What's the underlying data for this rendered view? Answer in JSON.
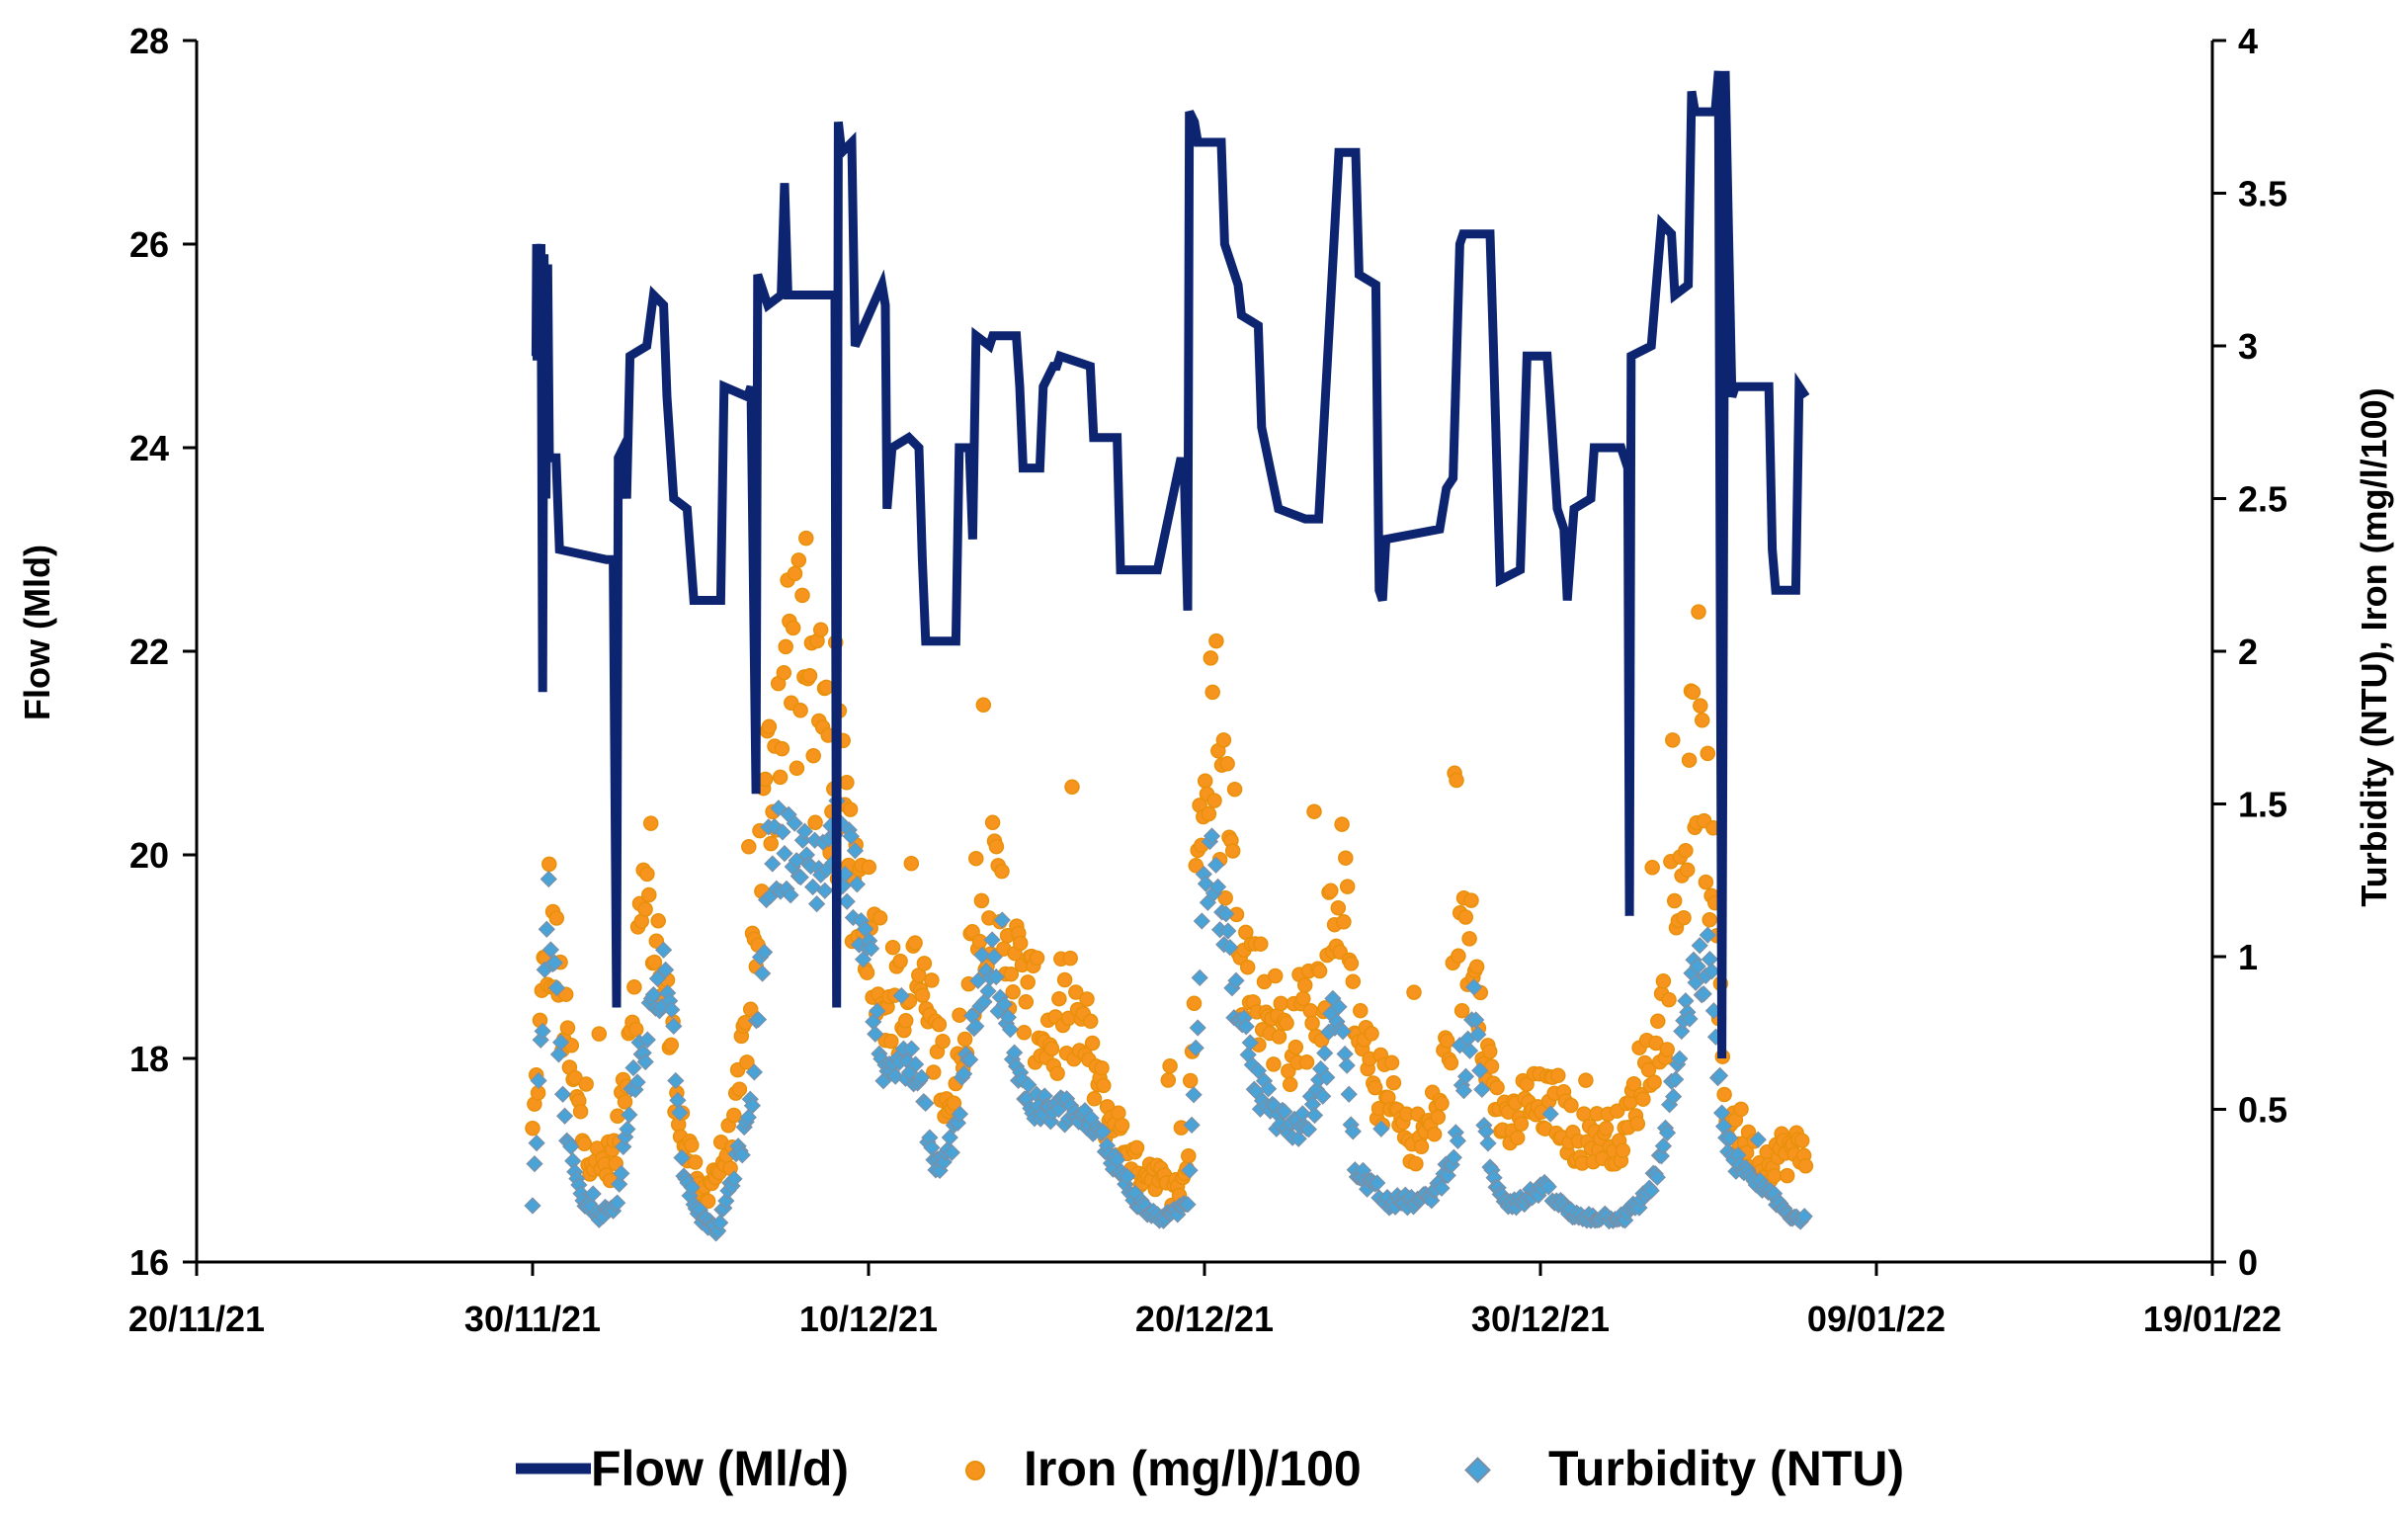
{
  "chart_data": {
    "type": "line",
    "title": "",
    "x_axis": {
      "type": "date",
      "range": [
        "20/11/21",
        "19/01/22"
      ],
      "tick_labels": [
        "20/11/21",
        "30/11/21",
        "10/12/21",
        "20/12/21",
        "30/12/21",
        "09/01/22",
        "19/01/22"
      ]
    },
    "y_left": {
      "label": "Flow (Mld)",
      "range": [
        16,
        28
      ],
      "tick_labels": [
        "16",
        "18",
        "20",
        "22",
        "24",
        "26",
        "28"
      ]
    },
    "y_right": {
      "label": "Turbidity (NTU), Iron (mg/l/100)",
      "range": [
        0,
        4
      ],
      "tick_labels": [
        "0",
        "0.5",
        "1",
        "1.5",
        "2",
        "2.5",
        "3",
        "3.5",
        "4"
      ]
    },
    "legend": {
      "position": "bottom"
    },
    "series": [
      {
        "name": "Flow (Ml/d)",
        "axis": "left",
        "style": "line",
        "color": "#0d2470",
        "points": [
          [
            0.0,
            24.9
          ],
          [
            0.1,
            24.9
          ],
          [
            0.12,
            26.0
          ],
          [
            0.2,
            25.5
          ],
          [
            0.25,
            26.0
          ],
          [
            0.3,
            21.6
          ],
          [
            0.34,
            25.9
          ],
          [
            0.4,
            23.5
          ],
          [
            0.45,
            25.8
          ],
          [
            0.5,
            23.9
          ],
          [
            0.7,
            23.9
          ],
          [
            0.8,
            23.0
          ],
          [
            2.2,
            22.9
          ],
          [
            2.4,
            22.9
          ],
          [
            2.5,
            18.5
          ],
          [
            2.55,
            23.9
          ],
          [
            2.7,
            24.0
          ],
          [
            2.8,
            23.5
          ],
          [
            2.9,
            24.9
          ],
          [
            3.4,
            25.0
          ],
          [
            3.6,
            25.5
          ],
          [
            3.9,
            25.4
          ],
          [
            4.0,
            24.5
          ],
          [
            4.2,
            23.5
          ],
          [
            4.6,
            23.4
          ],
          [
            4.8,
            22.5
          ],
          [
            5.6,
            22.5
          ],
          [
            5.7,
            24.6
          ],
          [
            6.4,
            24.5
          ],
          [
            6.5,
            24.6
          ],
          [
            6.65,
            20.6
          ],
          [
            6.7,
            25.7
          ],
          [
            7.0,
            25.4
          ],
          [
            7.4,
            25.5
          ],
          [
            7.5,
            26.6
          ],
          [
            7.6,
            25.5
          ],
          [
            9.0,
            25.5
          ],
          [
            9.05,
            18.5
          ],
          [
            9.1,
            27.2
          ],
          [
            9.2,
            26.9
          ],
          [
            9.5,
            27.0
          ],
          [
            9.6,
            25.0
          ],
          [
            10.4,
            25.6
          ],
          [
            10.5,
            25.4
          ],
          [
            10.55,
            23.4
          ],
          [
            10.7,
            24.0
          ],
          [
            11.2,
            24.1
          ],
          [
            11.5,
            24.0
          ],
          [
            11.6,
            22.9
          ],
          [
            11.7,
            22.1
          ],
          [
            12.6,
            22.1
          ],
          [
            12.7,
            24.0
          ],
          [
            13.0,
            24.0
          ],
          [
            13.1,
            23.1
          ],
          [
            13.2,
            25.1
          ],
          [
            13.6,
            25.0
          ],
          [
            13.7,
            25.1
          ],
          [
            14.4,
            25.1
          ],
          [
            14.5,
            24.6
          ],
          [
            14.6,
            23.8
          ],
          [
            15.1,
            23.8
          ],
          [
            15.2,
            24.6
          ],
          [
            15.5,
            24.8
          ],
          [
            15.6,
            24.8
          ],
          [
            15.7,
            24.9
          ],
          [
            16.6,
            24.8
          ],
          [
            16.7,
            24.1
          ],
          [
            17.4,
            24.1
          ],
          [
            17.5,
            22.8
          ],
          [
            18.6,
            22.8
          ],
          [
            19.3,
            23.9
          ],
          [
            19.4,
            23.7
          ],
          [
            19.5,
            22.4
          ],
          [
            19.55,
            27.3
          ],
          [
            19.7,
            27.2
          ],
          [
            19.8,
            27.0
          ],
          [
            20.5,
            27.0
          ],
          [
            20.6,
            26.0
          ],
          [
            21.0,
            25.6
          ],
          [
            21.1,
            25.3
          ],
          [
            21.6,
            25.2
          ],
          [
            21.7,
            24.2
          ],
          [
            22.2,
            23.4
          ],
          [
            23.0,
            23.3
          ],
          [
            23.4,
            23.3
          ],
          [
            23.5,
            23.9
          ],
          [
            24.0,
            26.9
          ],
          [
            24.5,
            26.9
          ],
          [
            24.6,
            25.7
          ],
          [
            25.1,
            25.6
          ],
          [
            25.2,
            22.6
          ],
          [
            25.3,
            22.5
          ],
          [
            25.4,
            23.1
          ],
          [
            27.0,
            23.2
          ],
          [
            27.2,
            23.6
          ],
          [
            27.4,
            23.7
          ],
          [
            27.6,
            26.0
          ],
          [
            27.7,
            26.1
          ],
          [
            28.5,
            26.1
          ],
          [
            28.6,
            25.0
          ],
          [
            28.8,
            22.7
          ],
          [
            29.4,
            22.8
          ],
          [
            29.6,
            24.9
          ],
          [
            30.2,
            24.9
          ],
          [
            30.5,
            23.4
          ],
          [
            30.7,
            23.2
          ],
          [
            30.8,
            22.5
          ],
          [
            31.0,
            23.4
          ],
          [
            31.5,
            23.5
          ],
          [
            31.6,
            24.0
          ],
          [
            32.4,
            24.0
          ],
          [
            32.6,
            23.8
          ],
          [
            32.65,
            19.4
          ],
          [
            32.7,
            24.9
          ],
          [
            33.3,
            25.0
          ],
          [
            33.6,
            26.2
          ],
          [
            33.9,
            26.1
          ],
          [
            34.0,
            25.5
          ],
          [
            34.4,
            25.6
          ],
          [
            34.5,
            27.5
          ],
          [
            34.6,
            27.3
          ],
          [
            35.2,
            27.3
          ],
          [
            35.3,
            27.7
          ],
          [
            35.4,
            18.0
          ],
          [
            35.5,
            27.7
          ],
          [
            35.7,
            24.5
          ],
          [
            35.8,
            24.6
          ],
          [
            36.8,
            24.6
          ],
          [
            36.9,
            23.0
          ],
          [
            37.0,
            22.6
          ],
          [
            37.6,
            22.6
          ],
          [
            37.7,
            24.6
          ],
          [
            37.9,
            24.5
          ]
        ]
      },
      {
        "name": "Iron (mg/l)/100",
        "axis": "right",
        "style": "markers-circle",
        "color": "#f7941d",
        "edge_color": "#e8900a",
        "approx_mean": [
          [
            0.0,
            0.4
          ],
          [
            0.5,
            1.1
          ],
          [
            1.0,
            0.7
          ],
          [
            1.5,
            0.4
          ],
          [
            2.0,
            0.3
          ],
          [
            2.5,
            0.35
          ],
          [
            3.0,
            0.9
          ],
          [
            3.5,
            1.2
          ],
          [
            4.0,
            0.8
          ],
          [
            4.5,
            0.4
          ],
          [
            5.0,
            0.2
          ],
          [
            5.5,
            0.3
          ],
          [
            6.0,
            0.4
          ],
          [
            6.5,
            0.9
          ],
          [
            7.0,
            1.5
          ],
          [
            7.5,
            1.9
          ],
          [
            8.0,
            2.0
          ],
          [
            8.5,
            1.7
          ],
          [
            9.0,
            1.5
          ],
          [
            9.5,
            1.3
          ],
          [
            10.0,
            1.1
          ],
          [
            10.5,
            0.9
          ],
          [
            11.0,
            0.8
          ],
          [
            11.5,
            0.9
          ],
          [
            12.0,
            0.7
          ],
          [
            12.5,
            0.5
          ],
          [
            13.0,
            0.9
          ],
          [
            13.5,
            1.2
          ],
          [
            14.0,
            1.1
          ],
          [
            14.5,
            0.9
          ],
          [
            15.0,
            0.8
          ],
          [
            15.5,
            0.7
          ],
          [
            16.0,
            0.8
          ],
          [
            16.5,
            0.7
          ],
          [
            17.0,
            0.5
          ],
          [
            17.5,
            0.4
          ],
          [
            18.0,
            0.3
          ],
          [
            18.5,
            0.3
          ],
          [
            19.0,
            0.2
          ],
          [
            19.5,
            0.3
          ],
          [
            20.0,
            1.9
          ],
          [
            20.5,
            1.6
          ],
          [
            21.0,
            1.0
          ],
          [
            21.5,
            0.9
          ],
          [
            22.0,
            0.8
          ],
          [
            22.5,
            0.7
          ],
          [
            23.0,
            0.8
          ],
          [
            23.5,
            0.9
          ],
          [
            24.0,
            1.3
          ],
          [
            24.5,
            0.7
          ],
          [
            25.0,
            0.6
          ],
          [
            25.5,
            0.5
          ],
          [
            26.0,
            0.4
          ],
          [
            26.5,
            0.4
          ],
          [
            27.0,
            0.5
          ],
          [
            27.5,
            0.9
          ],
          [
            28.0,
            1.1
          ],
          [
            28.5,
            0.6
          ],
          [
            29.0,
            0.4
          ],
          [
            29.5,
            0.5
          ],
          [
            30.0,
            0.5
          ],
          [
            30.5,
            0.5
          ],
          [
            31.0,
            0.4
          ],
          [
            31.5,
            0.4
          ],
          [
            32.0,
            0.4
          ],
          [
            32.5,
            0.4
          ],
          [
            33.0,
            0.6
          ],
          [
            33.5,
            0.7
          ],
          [
            34.0,
            1.0
          ],
          [
            34.5,
            1.6
          ],
          [
            35.0,
            1.4
          ],
          [
            35.5,
            0.5
          ],
          [
            36.0,
            0.4
          ],
          [
            36.5,
            0.3
          ],
          [
            37.0,
            0.35
          ],
          [
            37.5,
            0.35
          ],
          [
            37.9,
            0.35
          ]
        ]
      },
      {
        "name": "Turbidity (NTU)",
        "axis": "right",
        "style": "markers-diamond",
        "color": "#4aa3d6",
        "edge_color": "#7a8fa6",
        "approx_mean": [
          [
            0.0,
            0.2
          ],
          [
            0.5,
            1.2
          ],
          [
            1.0,
            0.4
          ],
          [
            1.5,
            0.2
          ],
          [
            2.0,
            0.15
          ],
          [
            2.5,
            0.2
          ],
          [
            3.0,
            0.6
          ],
          [
            3.5,
            0.8
          ],
          [
            4.0,
            1.0
          ],
          [
            4.5,
            0.3
          ],
          [
            5.0,
            0.15
          ],
          [
            5.5,
            0.1
          ],
          [
            6.0,
            0.3
          ],
          [
            6.5,
            0.5
          ],
          [
            7.0,
            1.3
          ],
          [
            7.5,
            1.4
          ],
          [
            8.0,
            1.3
          ],
          [
            8.5,
            1.3
          ],
          [
            9.0,
            1.4
          ],
          [
            9.5,
            1.3
          ],
          [
            10.0,
            1.0
          ],
          [
            10.5,
            0.6
          ],
          [
            11.0,
            0.7
          ],
          [
            11.5,
            0.6
          ],
          [
            12.0,
            0.3
          ],
          [
            12.5,
            0.4
          ],
          [
            13.0,
            0.7
          ],
          [
            13.5,
            1.0
          ],
          [
            14.0,
            0.9
          ],
          [
            14.5,
            0.6
          ],
          [
            15.0,
            0.5
          ],
          [
            15.5,
            0.5
          ],
          [
            16.0,
            0.5
          ],
          [
            16.5,
            0.45
          ],
          [
            17.0,
            0.4
          ],
          [
            17.5,
            0.3
          ],
          [
            18.0,
            0.2
          ],
          [
            18.5,
            0.15
          ],
          [
            19.0,
            0.15
          ],
          [
            19.5,
            0.2
          ],
          [
            20.0,
            1.3
          ],
          [
            20.5,
            1.2
          ],
          [
            21.0,
            0.8
          ],
          [
            21.5,
            0.6
          ],
          [
            22.0,
            0.5
          ],
          [
            22.5,
            0.45
          ],
          [
            23.0,
            0.45
          ],
          [
            23.5,
            0.6
          ],
          [
            24.0,
            0.9
          ],
          [
            24.5,
            0.3
          ],
          [
            25.0,
            0.25
          ],
          [
            25.5,
            0.2
          ],
          [
            26.0,
            0.2
          ],
          [
            26.5,
            0.2
          ],
          [
            27.0,
            0.25
          ],
          [
            27.5,
            0.4
          ],
          [
            28.0,
            0.85
          ],
          [
            28.5,
            0.3
          ],
          [
            29.0,
            0.2
          ],
          [
            29.5,
            0.2
          ],
          [
            30.0,
            0.25
          ],
          [
            30.5,
            0.2
          ],
          [
            31.0,
            0.15
          ],
          [
            31.5,
            0.15
          ],
          [
            32.0,
            0.15
          ],
          [
            32.5,
            0.15
          ],
          [
            33.0,
            0.2
          ],
          [
            33.5,
            0.3
          ],
          [
            34.0,
            0.6
          ],
          [
            34.5,
            0.9
          ],
          [
            35.0,
            1.0
          ],
          [
            35.5,
            0.4
          ],
          [
            36.0,
            0.3
          ],
          [
            36.5,
            0.25
          ],
          [
            37.0,
            0.2
          ],
          [
            37.5,
            0.15
          ],
          [
            37.9,
            0.15
          ]
        ]
      }
    ]
  }
}
